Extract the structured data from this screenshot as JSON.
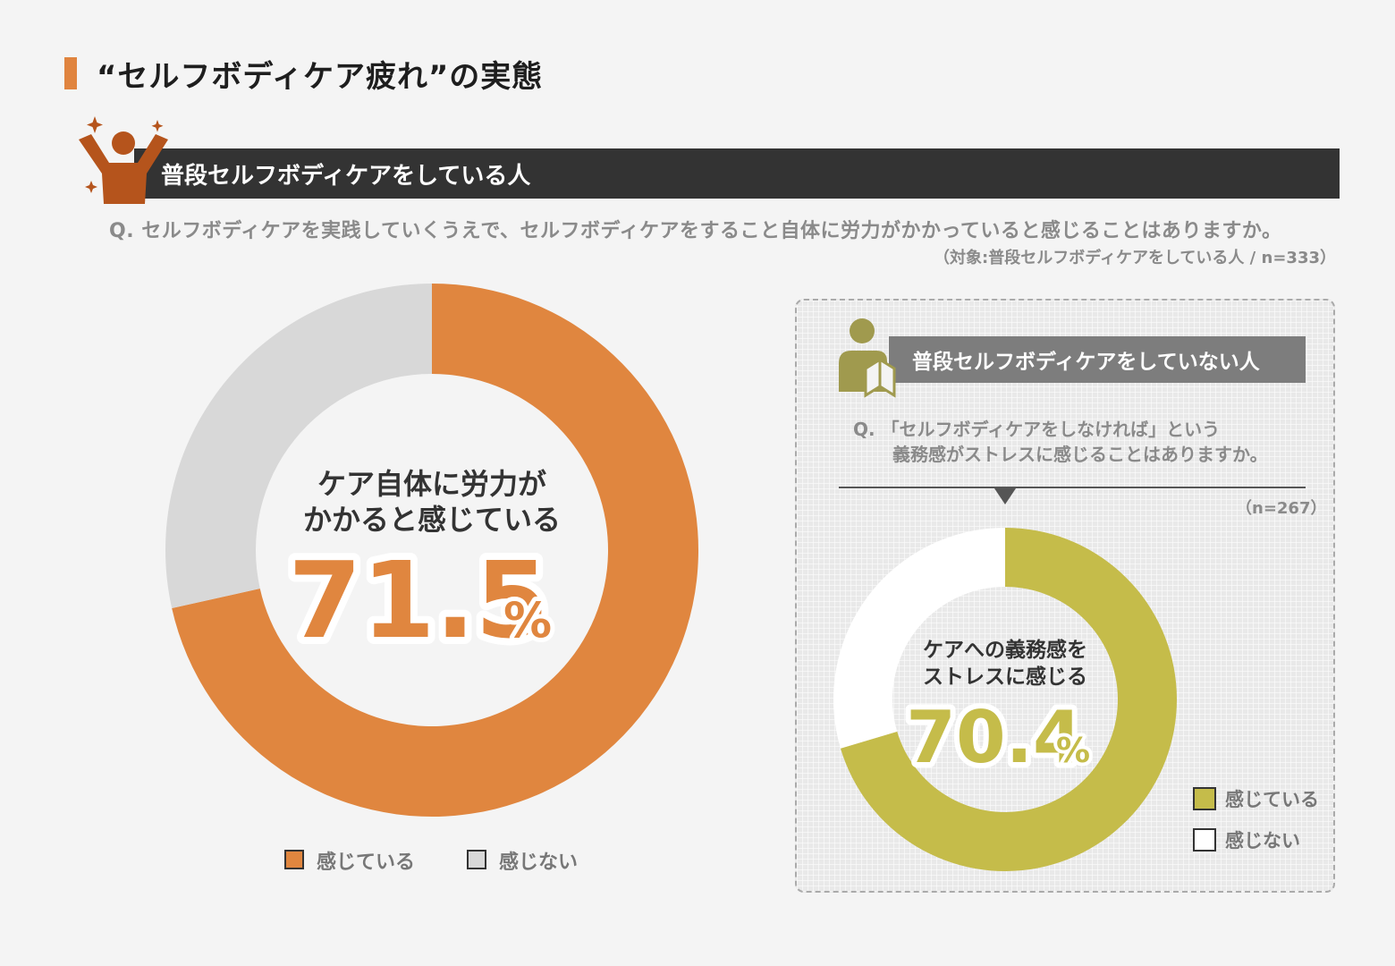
{
  "page_title": "“セルフボディケア疲れ”の実態",
  "section1": {
    "label": "普段セルフボディケアをしている人",
    "question": "Q. セルフボディケアを実践していくうえで、セルフボディケアをすること自体に労力がかかっていると感じることはありますか。",
    "target": "（対象:普段セルフボディケアをしている人 / n=333）",
    "center_line1": "ケア自体に労力が",
    "center_line2": "かかると感じている",
    "center_value": "71.5",
    "center_unit": "%",
    "legend": [
      {
        "label": "感じている",
        "color": "#e0863f"
      },
      {
        "label": "感じない",
        "color": "#d8d8d8"
      }
    ]
  },
  "section2": {
    "label": "普段セルフボディケアをしていない人",
    "question_line1": "Q. 「セルフボディケアをしなければ」という",
    "question_line2": "義務感がストレスに感じることはありますか。",
    "sample": "（n=267）",
    "center_line1": "ケアへの義務感を",
    "center_line2": "ストレスに感じる",
    "center_value": "70.4",
    "center_unit": "%",
    "legend": [
      {
        "label": "感じている",
        "color": "#c5bc4a"
      },
      {
        "label": "感じない",
        "color": "#ffffff"
      }
    ]
  },
  "chart_data": [
    {
      "type": "pie",
      "title": "普段セルフボディケアをしている人",
      "categories": [
        "感じている",
        "感じない"
      ],
      "values": [
        71.5,
        28.5
      ],
      "colors": [
        "#e0863f",
        "#d8d8d8"
      ],
      "n": 333
    },
    {
      "type": "pie",
      "title": "普段セルフボディケアをしていない人",
      "categories": [
        "感じている",
        "感じない"
      ],
      "values": [
        70.4,
        29.6
      ],
      "colors": [
        "#c5bc4a",
        "#ffffff"
      ],
      "n": 267
    }
  ]
}
